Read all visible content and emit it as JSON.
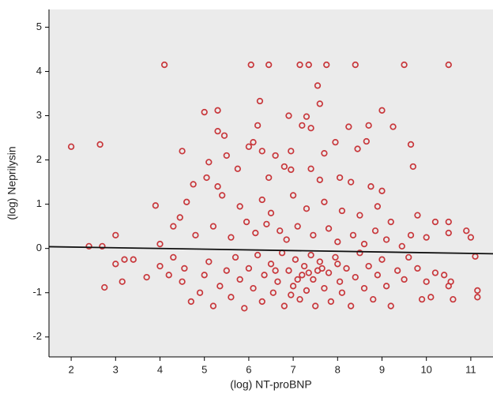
{
  "chart_data": {
    "type": "scatter",
    "x_label": "(log) NT-proBNP",
    "y_label": "(log) Neprilysin",
    "xlim": [
      1.5,
      11.5
    ],
    "ylim": [
      -2.45,
      5.4
    ],
    "xticks": [
      2,
      3,
      4,
      5,
      6,
      7,
      8,
      9,
      10,
      11
    ],
    "yticks": [
      -2,
      -1,
      0,
      1,
      2,
      3,
      4,
      5
    ],
    "background": "#ebebeb",
    "series": [
      {
        "color": "#c8373b",
        "x": [
          2.0,
          2.65,
          4.1,
          6.05,
          6.45,
          7.15,
          7.35,
          7.75,
          8.4,
          9.5,
          10.5,
          7.55,
          6.25,
          5.3,
          5.0,
          7.6,
          9.0,
          6.9,
          7.3,
          6.2,
          7.2,
          7.4,
          8.25,
          8.7,
          9.25,
          5.3,
          5.45,
          6.0,
          6.1,
          6.3,
          7.7,
          8.45,
          8.65,
          9.65,
          4.5,
          5.5,
          6.6,
          6.95,
          7.95,
          5.1,
          5.75,
          6.8,
          7.4,
          8.05,
          9.7,
          5.05,
          5.3,
          4.75,
          6.45,
          6.95,
          7.6,
          8.3,
          8.75,
          9.0,
          3.9,
          4.3,
          4.6,
          5.4,
          5.8,
          6.3,
          6.5,
          7.0,
          7.3,
          7.7,
          8.1,
          8.5,
          8.9,
          9.2,
          9.8,
          10.2,
          10.5,
          10.9,
          11.0,
          3.0,
          2.4,
          2.7,
          4.0,
          4.45,
          4.8,
          5.2,
          5.6,
          5.95,
          6.15,
          6.4,
          6.7,
          6.85,
          7.1,
          7.45,
          7.8,
          8.0,
          8.35,
          8.6,
          8.85,
          9.1,
          9.45,
          9.65,
          10.0,
          10.5,
          11.1,
          3.0,
          3.2,
          3.4,
          3.15,
          2.75,
          3.7,
          4.0,
          4.2,
          4.3,
          4.5,
          4.55,
          4.7,
          4.9,
          5.0,
          5.1,
          5.2,
          5.35,
          5.5,
          5.6,
          5.7,
          5.8,
          5.9,
          6.0,
          6.1,
          6.2,
          6.3,
          6.35,
          6.5,
          6.55,
          6.65,
          6.75,
          6.8,
          6.9,
          7.0,
          7.05,
          7.15,
          7.2,
          7.25,
          7.3,
          7.4,
          7.45,
          7.5,
          7.55,
          7.6,
          7.7,
          7.8,
          7.85,
          7.95,
          8.05,
          8.1,
          8.2,
          8.3,
          8.4,
          8.5,
          8.6,
          8.7,
          8.8,
          8.9,
          9.0,
          9.1,
          9.2,
          9.35,
          9.5,
          9.6,
          9.8,
          9.9,
          10.0,
          10.1,
          10.2,
          10.4,
          10.5,
          10.55,
          10.6,
          11.15,
          11.15,
          6.6,
          7.35,
          7.65,
          7.1,
          6.95,
          8.0
        ],
        "y": [
          2.3,
          2.35,
          4.15,
          4.15,
          4.15,
          4.15,
          4.15,
          4.15,
          4.15,
          4.15,
          4.15,
          3.68,
          3.33,
          3.12,
          3.08,
          3.27,
          3.12,
          3.0,
          2.98,
          2.78,
          2.78,
          2.72,
          2.75,
          2.78,
          2.75,
          2.65,
          2.55,
          2.3,
          2.4,
          2.2,
          2.15,
          2.25,
          2.42,
          2.35,
          2.2,
          2.1,
          2.1,
          2.2,
          2.4,
          1.95,
          1.8,
          1.85,
          1.8,
          1.6,
          1.85,
          1.6,
          1.4,
          1.45,
          1.6,
          1.78,
          1.55,
          1.5,
          1.4,
          1.3,
          0.97,
          0.5,
          1.05,
          1.2,
          0.95,
          1.1,
          0.8,
          1.2,
          0.9,
          1.05,
          0.85,
          0.75,
          0.95,
          0.6,
          0.75,
          0.6,
          0.6,
          0.4,
          0.25,
          0.3,
          0.05,
          0.05,
          0.1,
          0.7,
          0.3,
          0.5,
          0.25,
          0.6,
          0.35,
          0.55,
          0.4,
          0.2,
          0.5,
          0.3,
          0.45,
          0.15,
          0.3,
          0.1,
          0.4,
          0.2,
          0.05,
          0.3,
          0.25,
          0.35,
          -0.18,
          -0.35,
          -0.25,
          -0.25,
          -0.75,
          -0.88,
          -0.65,
          -0.4,
          -0.6,
          -0.2,
          -0.75,
          -0.45,
          -1.2,
          -1.0,
          -0.6,
          -0.3,
          -1.3,
          -0.85,
          -0.5,
          -1.1,
          -0.2,
          -0.7,
          -1.35,
          -0.45,
          -0.9,
          -0.15,
          -1.2,
          -0.6,
          -0.35,
          -1.0,
          -0.75,
          -0.1,
          -1.3,
          -0.5,
          -0.85,
          -0.25,
          -1.15,
          -0.6,
          -0.4,
          -0.95,
          -0.15,
          -0.7,
          -1.3,
          -0.5,
          -0.3,
          -0.9,
          -0.55,
          -1.2,
          -0.2,
          -0.75,
          -1.0,
          -0.45,
          -1.3,
          -0.65,
          -0.1,
          -0.9,
          -0.4,
          -1.15,
          -0.6,
          -0.25,
          -0.85,
          -1.3,
          -0.5,
          -0.7,
          -0.2,
          -0.45,
          -1.15,
          -0.75,
          -1.1,
          -0.55,
          -0.6,
          -0.85,
          -0.75,
          -1.15,
          -0.95,
          -1.1,
          -0.5,
          -0.55,
          -0.45,
          -0.7,
          -1.05,
          -0.35
        ]
      }
    ],
    "trend_line": {
      "color": "#111111",
      "x": [
        1.5,
        11.5
      ],
      "y": [
        0.04,
        -0.12
      ]
    }
  }
}
